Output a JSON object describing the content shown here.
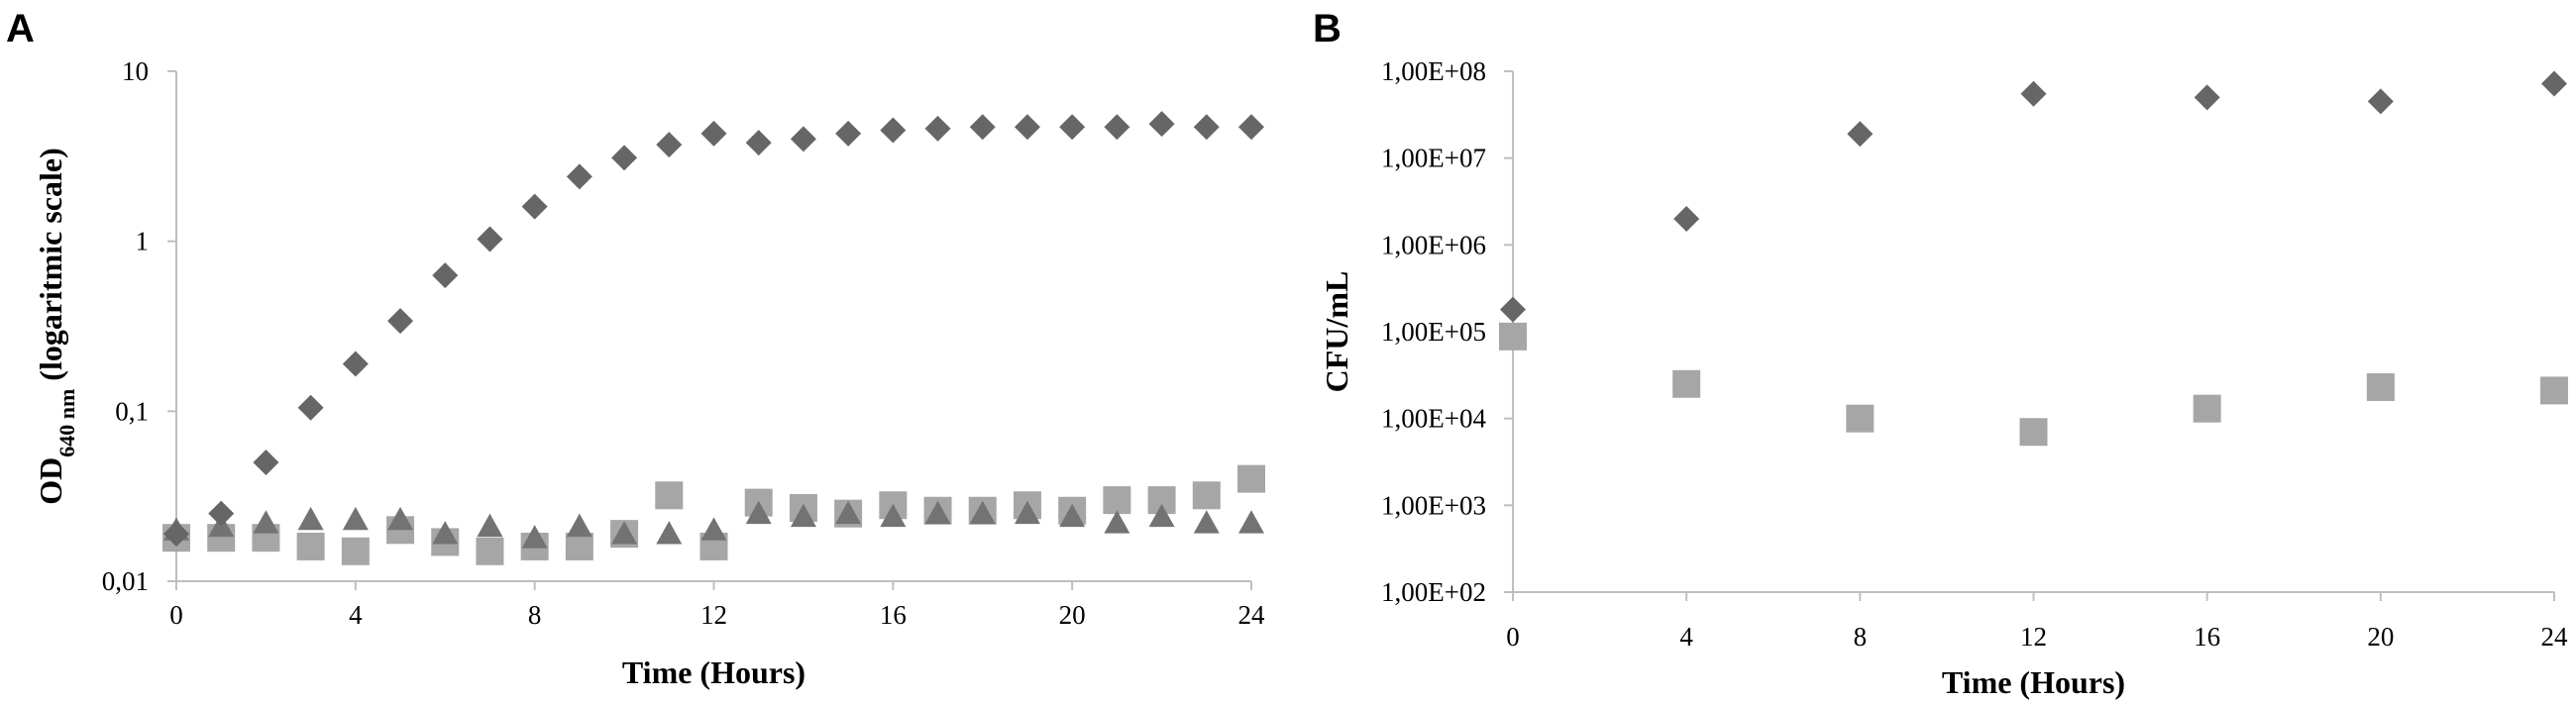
{
  "chart_data": [
    {
      "panel_label": "A",
      "type": "scatter",
      "xlabel": "Time (Hours)",
      "ylabel_main": "OD",
      "ylabel_sub": "640 nm",
      "ylabel_rest": " (logaritmic scale)",
      "y_scale": "log",
      "xlim": [
        0,
        24
      ],
      "ylim": [
        0.01,
        10
      ],
      "x_ticks": [
        "0",
        "4",
        "8",
        "12",
        "16",
        "20",
        "24"
      ],
      "x_tick_values": [
        0,
        4,
        8,
        12,
        16,
        20,
        24
      ],
      "y_ticks": [
        "0,01",
        "0,1",
        "1",
        "10"
      ],
      "y_tick_values": [
        0.01,
        0.1,
        1,
        10
      ],
      "grid": false,
      "legend": "none",
      "series": [
        {
          "marker": "diamond",
          "color": "#666666",
          "points": [
            [
              0,
              0.019
            ],
            [
              1,
              0.025
            ],
            [
              2,
              0.05
            ],
            [
              3,
              0.105
            ],
            [
              4,
              0.19
            ],
            [
              5,
              0.34
            ],
            [
              6,
              0.63
            ],
            [
              7,
              1.03
            ],
            [
              8,
              1.6
            ],
            [
              9,
              2.4
            ],
            [
              10,
              3.1
            ],
            [
              11,
              3.7
            ],
            [
              12,
              4.3
            ],
            [
              13,
              3.8
            ],
            [
              14,
              4.0
            ],
            [
              15,
              4.3
            ],
            [
              16,
              4.5
            ],
            [
              17,
              4.6
            ],
            [
              18,
              4.7
            ],
            [
              19,
              4.7
            ],
            [
              20,
              4.7
            ],
            [
              21,
              4.7
            ],
            [
              22,
              4.9
            ],
            [
              23,
              4.7
            ],
            [
              24,
              4.7
            ]
          ]
        },
        {
          "marker": "square",
          "color": "#a6a6a6",
          "points": [
            [
              0,
              0.018
            ],
            [
              1,
              0.018
            ],
            [
              2,
              0.018
            ],
            [
              3,
              0.016
            ],
            [
              4,
              0.015
            ],
            [
              5,
              0.02
            ],
            [
              6,
              0.017
            ],
            [
              7,
              0.015
            ],
            [
              8,
              0.016
            ],
            [
              9,
              0.016
            ],
            [
              10,
              0.019
            ],
            [
              11,
              0.032
            ],
            [
              12,
              0.016
            ],
            [
              13,
              0.029
            ],
            [
              14,
              0.027
            ],
            [
              15,
              0.025
            ],
            [
              16,
              0.028
            ],
            [
              17,
              0.026
            ],
            [
              18,
              0.026
            ],
            [
              19,
              0.028
            ],
            [
              20,
              0.026
            ],
            [
              21,
              0.03
            ],
            [
              22,
              0.03
            ],
            [
              23,
              0.032
            ],
            [
              24,
              0.04
            ]
          ]
        },
        {
          "marker": "triangle",
          "color": "#737373",
          "points": [
            [
              0,
              0.02
            ],
            [
              1,
              0.021
            ],
            [
              2,
              0.022
            ],
            [
              3,
              0.023
            ],
            [
              4,
              0.023
            ],
            [
              5,
              0.023
            ],
            [
              6,
              0.019
            ],
            [
              7,
              0.021
            ],
            [
              8,
              0.018
            ],
            [
              9,
              0.021
            ],
            [
              10,
              0.019
            ],
            [
              11,
              0.019
            ],
            [
              12,
              0.02
            ],
            [
              13,
              0.025
            ],
            [
              14,
              0.024
            ],
            [
              15,
              0.025
            ],
            [
              16,
              0.024
            ],
            [
              17,
              0.025
            ],
            [
              18,
              0.025
            ],
            [
              19,
              0.025
            ],
            [
              20,
              0.024
            ],
            [
              21,
              0.022
            ],
            [
              22,
              0.024
            ],
            [
              23,
              0.022
            ],
            [
              24,
              0.022
            ]
          ]
        }
      ]
    },
    {
      "panel_label": "B",
      "type": "scatter",
      "xlabel": "Time (Hours)",
      "ylabel_main": "CFU/mL",
      "y_scale": "log",
      "xlim": [
        0,
        24
      ],
      "ylim": [
        100,
        100000000
      ],
      "x_ticks": [
        "0",
        "4",
        "8",
        "12",
        "16",
        "20",
        "24"
      ],
      "x_tick_values": [
        0,
        4,
        8,
        12,
        16,
        20,
        24
      ],
      "y_ticks": [
        "1,00E+02",
        "1,00E+03",
        "1,00E+04",
        "1,00E+05",
        "1,00E+06",
        "1,00E+07",
        "1,00E+08"
      ],
      "y_tick_values": [
        100,
        1000,
        10000,
        100000,
        1000000,
        10000000,
        100000000
      ],
      "grid": false,
      "legend": "none",
      "series": [
        {
          "marker": "diamond",
          "color": "#666666",
          "points": [
            [
              0,
              180000
            ],
            [
              4,
              2000000
            ],
            [
              8,
              19000000
            ],
            [
              12,
              55000000
            ],
            [
              16,
              50000000
            ],
            [
              20,
              45000000
            ],
            [
              24,
              72000000
            ]
          ]
        },
        {
          "marker": "square",
          "color": "#a6a6a6",
          "points": [
            [
              0,
              88000
            ],
            [
              4,
              25000
            ],
            [
              8,
              10000
            ],
            [
              12,
              7000
            ],
            [
              16,
              13000
            ],
            [
              20,
              23000
            ],
            [
              24,
              21000
            ]
          ]
        }
      ]
    }
  ]
}
